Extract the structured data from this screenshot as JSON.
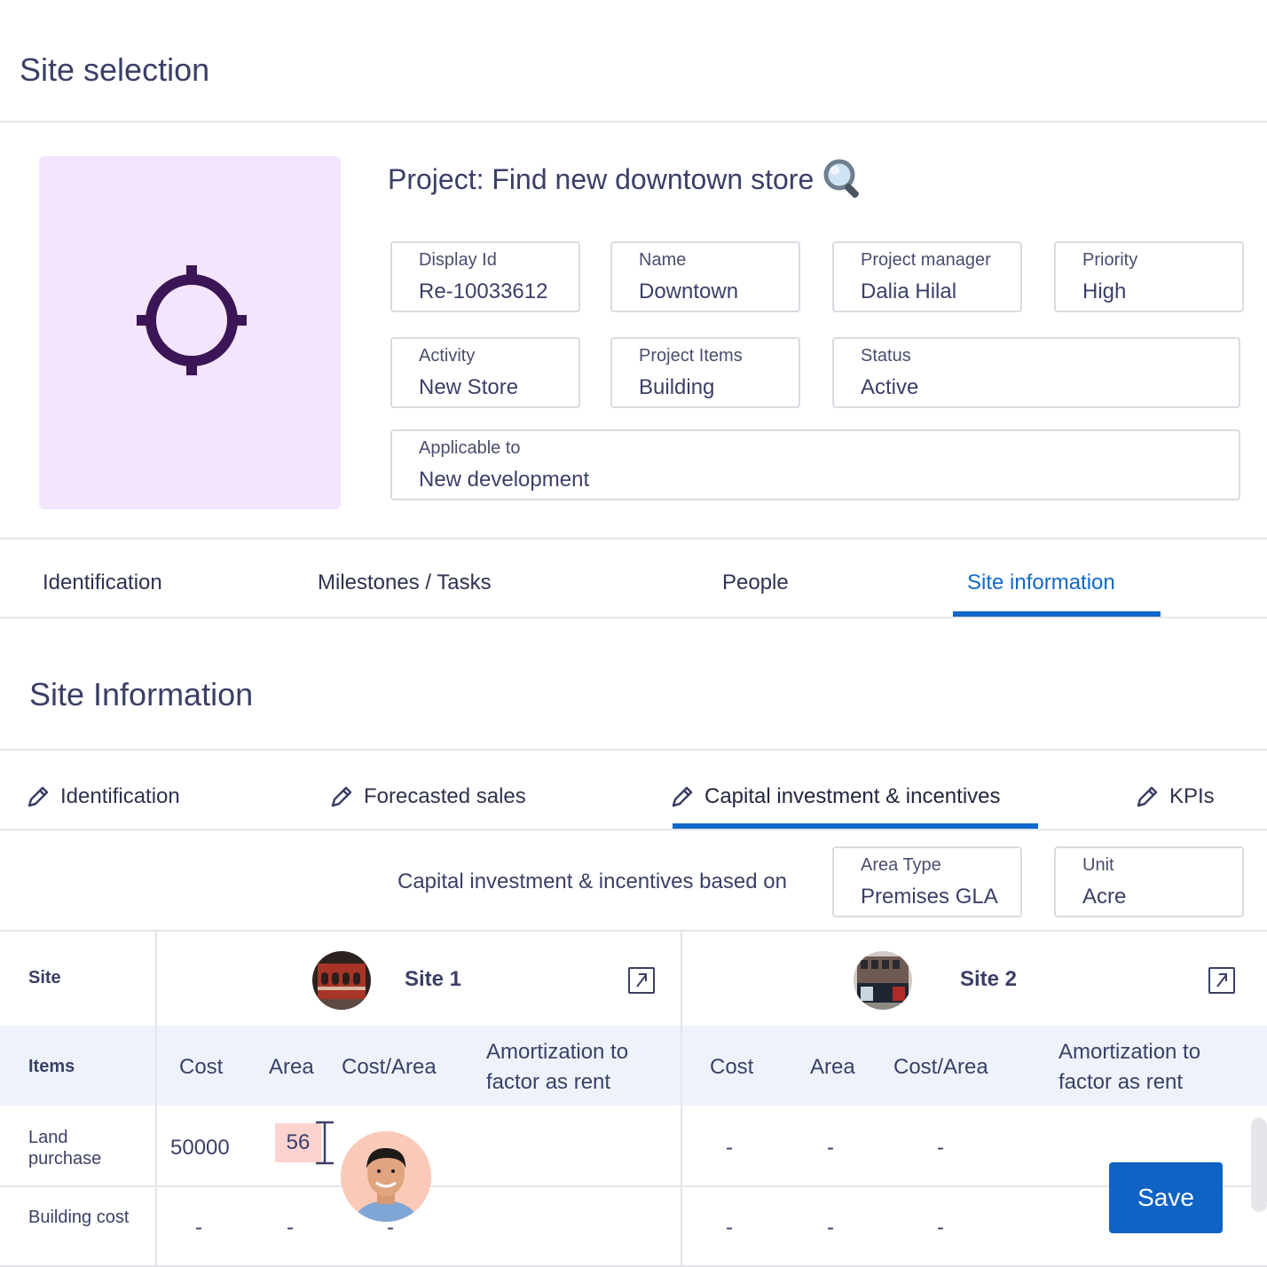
{
  "page": {
    "title": "Site selection"
  },
  "project": {
    "title": "Project: Find new downtown store",
    "fields": {
      "display_id": {
        "label": "Display Id",
        "value": "Re-10033612"
      },
      "name": {
        "label": "Name",
        "value": "Downtown"
      },
      "project_manager": {
        "label": "Project manager",
        "value": "Dalia Hilal"
      },
      "priority": {
        "label": "Priority",
        "value": "High"
      },
      "activity": {
        "label": "Activity",
        "value": "New Store"
      },
      "project_items": {
        "label": "Project Items",
        "value": "Building"
      },
      "status": {
        "label": "Status",
        "value": "Active"
      },
      "applicable_to": {
        "label": "Applicable to",
        "value": "New development"
      }
    }
  },
  "tabs": [
    "Identification",
    "Milestones / Tasks",
    "People",
    "Site information"
  ],
  "section": {
    "title": "Site Information",
    "subtabs": [
      "Identification",
      "Forecasted sales",
      "Capital investment & incentives",
      "KPIs"
    ],
    "based_on": "Capital investment & incentives based on",
    "area_type": {
      "label": "Area Type",
      "value": "Premises GLA"
    },
    "unit": {
      "label": "Unit",
      "value": "Acre"
    }
  },
  "table": {
    "site_label": "Site",
    "items_label": "Items",
    "sites": [
      "Site 1",
      "Site 2"
    ],
    "columns": [
      "Cost",
      "Area",
      "Cost/Area",
      "Amortization to factor as rent"
    ],
    "columns_site2": [
      "Cost",
      "Area",
      "Cost/Area",
      "Amortization to factor as rent"
    ],
    "rows": [
      {
        "label": "Land purchase",
        "site1": [
          "50000",
          "56",
          ""
        ],
        "site2": [
          "-",
          "-",
          "-"
        ]
      },
      {
        "label": "Building cost",
        "site1": [
          "-",
          "-",
          "-"
        ],
        "site2": [
          "-",
          "-",
          "-"
        ]
      }
    ]
  },
  "actions": {
    "save": "Save"
  },
  "icons": {
    "target": "crosshair-icon",
    "search": "magnifier-icon",
    "edit": "pencil-icon",
    "external": "external-link-icon"
  },
  "colors": {
    "accent": "#1368c7",
    "image_bg": "#f3e5fc",
    "edit_highlight": "#fcd3cf"
  }
}
